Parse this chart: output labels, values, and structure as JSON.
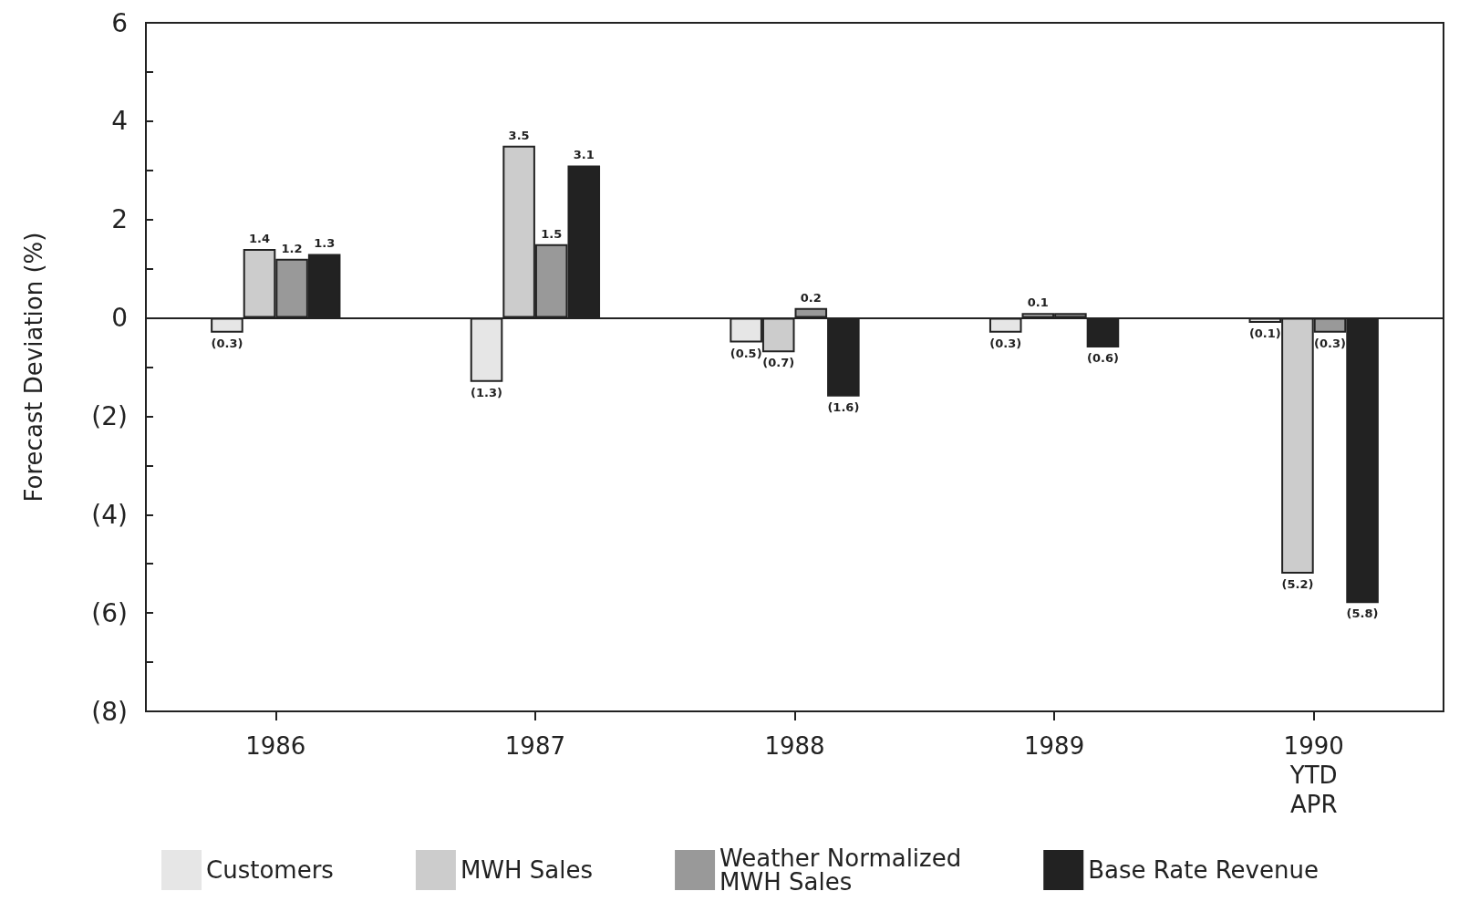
{
  "chart_data": {
    "type": "bar",
    "ylabel": "Forecast Deviation (%)",
    "categories": [
      "1986",
      "1987",
      "1988",
      "1989",
      "1990\nYTD\nAPR"
    ],
    "series": [
      {
        "name": "Customers",
        "color": "#e6e6e6",
        "values": [
          -0.3,
          -1.3,
          -0.5,
          -0.3,
          -0.1
        ],
        "value_labels": [
          "(0.3)",
          "(1.3)",
          "(0.5)",
          "(0.3)",
          "(0.1)"
        ]
      },
      {
        "name": "MWH Sales",
        "color": "#cccccc",
        "values": [
          1.4,
          3.5,
          -0.7,
          0.1,
          -5.2
        ],
        "value_labels": [
          "1.4",
          "3.5",
          "(0.7)",
          "0.1",
          "(5.2)"
        ]
      },
      {
        "name": "Weather Normalized\nMWH Sales",
        "color": "#999999",
        "values": [
          1.2,
          1.5,
          0.2,
          0.1,
          -0.3
        ],
        "value_labels": [
          "1.2",
          "1.5",
          "0.2",
          null,
          "(0.3)"
        ]
      },
      {
        "name": "Base Rate Revenue",
        "color": "#222222",
        "values": [
          1.3,
          3.1,
          -1.6,
          -0.6,
          -5.8
        ],
        "value_labels": [
          "1.3",
          "3.1",
          "(1.6)",
          "(0.6)",
          "(5.8)"
        ]
      }
    ],
    "ylim": [
      -8,
      6
    ],
    "yticks": [
      6,
      {
        "value": 5,
        "label": null
      },
      4,
      {
        "value": 3,
        "label": null
      },
      2,
      {
        "value": 1,
        "label": null
      },
      0,
      {
        "value": -1,
        "label": null
      },
      {
        "value": -2,
        "label": "(2)"
      },
      {
        "value": -3,
        "label": null
      },
      {
        "value": -4,
        "label": "(4)"
      },
      {
        "value": -5,
        "label": null
      },
      {
        "value": -6,
        "label": "(6)"
      },
      {
        "value": -7,
        "label": null
      },
      {
        "value": -8,
        "label": "(8)"
      }
    ],
    "legend": "bottom"
  }
}
